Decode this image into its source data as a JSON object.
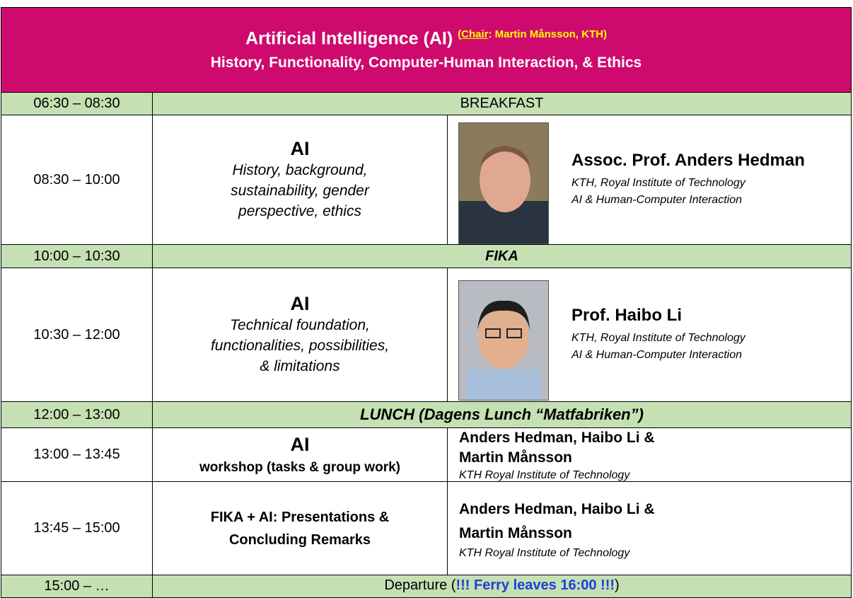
{
  "header": {
    "title": "Artificial Intelligence (AI)",
    "chair_open": "(",
    "chair_label": "Chair",
    "chair_rest": ": Martin Månsson, KTH)",
    "subtitle": "History, Functionality, Computer-Human Interaction, & Ethics"
  },
  "schedule": [
    {
      "time": "06:30 – 08:30",
      "activity": "BREAKFAST"
    },
    {
      "time": "08:30 – 10:00",
      "topic": "AI",
      "description": [
        "History, background,",
        "sustainability, gender",
        "perspective, ethics"
      ],
      "speaker": "Assoc. Prof. Anders Hedman",
      "affiliation": [
        "KTH, Royal Institute of Technology",
        "AI & Human-Computer Interaction"
      ]
    },
    {
      "time": "10:00 – 10:30",
      "activity": "FIKA"
    },
    {
      "time": "10:30 – 12:00",
      "topic": "AI",
      "description": [
        "Technical foundation,",
        "functionalities, possibilities,",
        "& limitations"
      ],
      "speaker": "Prof. Haibo Li",
      "affiliation": [
        "KTH, Royal Institute of Technology",
        "AI & Human-Computer Interaction"
      ]
    },
    {
      "time": "12:00 – 13:00",
      "activity": "LUNCH (Dagens Lunch “Matfabriken”)"
    },
    {
      "time": "13:00 – 13:45",
      "topic": "AI",
      "description": "workshop (tasks & group work)",
      "speakers": [
        "Anders Hedman, Haibo Li &",
        "Martin Månsson"
      ],
      "affiliation": "KTH Royal Institute of Technology"
    },
    {
      "time": "13:45 – 15:00",
      "topic": [
        "FIKA + AI: Presentations &",
        "Concluding Remarks"
      ],
      "speakers": [
        "Anders Hedman, Haibo Li &",
        "Martin Månsson"
      ],
      "affiliation": "KTH Royal Institute of Technology"
    },
    {
      "time": "15:00 – …",
      "activity": "Departure (",
      "highlight": "!!! Ferry leaves 16:00 !!!",
      "activity_end": ")"
    }
  ]
}
